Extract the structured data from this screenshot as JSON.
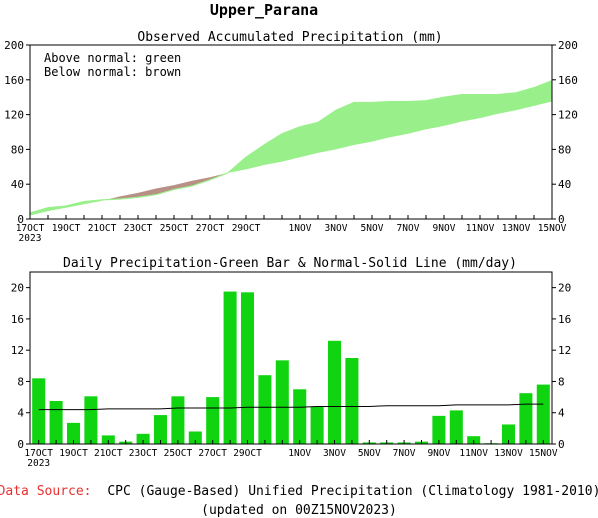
{
  "page": {
    "title": "Upper_Parana",
    "source_label": "Data Source:",
    "source_text": "CPC (Gauge-Based) Unified Precipitation (Climatology 1981-2010)",
    "updated": "(updated on 00Z15NOV2023)"
  },
  "colors": {
    "above_normal": "#99f08a",
    "below_normal": "#b89085",
    "bar": "#11d411",
    "normal_line": "#000000",
    "source_label": "#e83030"
  },
  "chart_data": [
    {
      "type": "area",
      "title": "Observed Accumulated Precipitation (mm)",
      "legend": [
        "Above normal: green",
        "Below normal: brown"
      ],
      "legend_position": "top-left",
      "ylim": [
        0,
        200
      ],
      "yticks": [
        0,
        40,
        80,
        120,
        160,
        200
      ],
      "xlim": [
        0,
        29
      ],
      "xticks": [
        {
          "x": 0,
          "label": "17OCT",
          "sub": "2023"
        },
        {
          "x": 2,
          "label": "19OCT"
        },
        {
          "x": 4,
          "label": "21OCT"
        },
        {
          "x": 6,
          "label": "23OCT"
        },
        {
          "x": 8,
          "label": "25OCT"
        },
        {
          "x": 10,
          "label": "27OCT"
        },
        {
          "x": 12,
          "label": "29OCT"
        },
        {
          "x": 15,
          "label": "1NOV"
        },
        {
          "x": 17,
          "label": "3NOV"
        },
        {
          "x": 19,
          "label": "5NOV"
        },
        {
          "x": 21,
          "label": "7NOV"
        },
        {
          "x": 23,
          "label": "9NOV"
        },
        {
          "x": 25,
          "label": "11NOV"
        },
        {
          "x": 27,
          "label": "13NOV"
        },
        {
          "x": 29,
          "label": "15NOV"
        }
      ],
      "grid": false,
      "x": [
        0,
        1,
        2,
        3,
        4,
        5,
        6,
        7,
        8,
        9,
        10,
        11,
        12,
        13,
        14,
        15,
        16,
        17,
        18,
        19,
        20,
        21,
        22,
        23,
        24,
        25,
        26,
        27,
        28,
        29
      ],
      "series": [
        {
          "name": "Observed",
          "values": [
            7,
            13,
            15,
            20,
            22,
            23,
            25,
            28,
            34,
            38,
            45,
            53,
            71,
            85,
            98,
            106,
            111,
            125,
            134,
            134,
            135,
            135,
            136,
            140,
            143,
            143,
            143,
            145,
            151,
            159
          ]
        },
        {
          "name": "Normal",
          "values": [
            4,
            9,
            13,
            17,
            21,
            26,
            30,
            35,
            39,
            44,
            48,
            53,
            57,
            62,
            66,
            71,
            76,
            80,
            85,
            89,
            94,
            98,
            103,
            107,
            112,
            116,
            121,
            125,
            130,
            135
          ]
        }
      ]
    },
    {
      "type": "bar",
      "title": "Daily Precipitation-Green Bar & Normal-Solid Line (mm/day)",
      "ylim": [
        0,
        22
      ],
      "yticks": [
        0,
        4,
        8,
        12,
        16,
        20
      ],
      "grid": false,
      "x": [
        0,
        1,
        2,
        3,
        4,
        5,
        6,
        7,
        8,
        9,
        10,
        11,
        12,
        13,
        14,
        15,
        16,
        17,
        18,
        19,
        20,
        21,
        22,
        23,
        24,
        25,
        26,
        27,
        28,
        29
      ],
      "series": [
        {
          "name": "Daily Precipitation",
          "values": [
            8.4,
            5.5,
            2.7,
            6.1,
            1.1,
            0.3,
            1.3,
            3.7,
            6.1,
            1.6,
            6.0,
            19.5,
            19.4,
            8.8,
            10.7,
            7.0,
            4.8,
            13.2,
            11.0,
            0.2,
            0.2,
            0.2,
            0.3,
            3.6,
            4.3,
            1.0,
            0.1,
            2.5,
            6.5,
            7.6
          ]
        },
        {
          "name": "Normal",
          "values": [
            4.4,
            4.4,
            4.4,
            4.4,
            4.5,
            4.5,
            4.5,
            4.5,
            4.6,
            4.6,
            4.6,
            4.6,
            4.7,
            4.7,
            4.7,
            4.7,
            4.8,
            4.8,
            4.8,
            4.8,
            4.9,
            4.9,
            4.9,
            4.9,
            5.0,
            5.0,
            5.0,
            5.0,
            5.1,
            5.1
          ]
        }
      ]
    }
  ]
}
